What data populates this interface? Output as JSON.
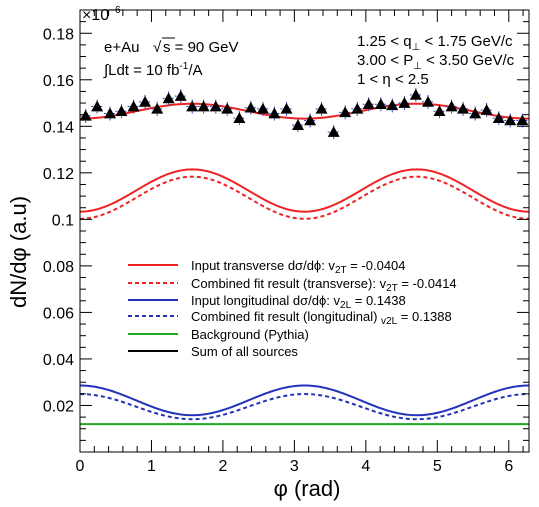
{
  "chart_data": {
    "type": "scatter",
    "xlabel": "φ (rad)",
    "ylabel": "dN/dφ (a.u)",
    "xlim": [
      0,
      6.283
    ],
    "ylim": [
      0,
      1.9e-07
    ],
    "y_exponent_label": "×10",
    "y_exponent": "−6",
    "x_ticks": [
      0,
      1,
      2,
      3,
      4,
      5,
      6
    ],
    "x_tick_labels": [
      "0",
      "1",
      "2",
      "3",
      "4",
      "5",
      "6"
    ],
    "y_ticks": [
      2e-08,
      4e-08,
      6e-08,
      8e-08,
      1e-07,
      1.2e-07,
      1.4e-07,
      1.6e-07,
      1.8e-07
    ],
    "y_tick_labels": [
      "0.02",
      "0.04",
      "0.06",
      "0.08",
      "0.1",
      "0.12",
      "0.14",
      "0.16",
      "0.18"
    ],
    "annotations": {
      "collision_pre": "e+Au ",
      "collision_post": "s = 90 GeV",
      "lumi_pre": "∫Ldt = 10 fb",
      "lumi_sup": "-1",
      "lumi_post": "/A",
      "qperp_pre": "1.25 < q",
      "qperp_sub": "⊥",
      "qperp_post": " < 1.75 GeV/c",
      "pperp_pre": "3.00 < P",
      "pperp_sub": "⊥",
      "pperp_post": " < 3.50 GeV/c",
      "eta": "1 < η < 2.5"
    },
    "legend": [
      {
        "pre": "Input transverse dσ/dϕ: v",
        "sub": "2T",
        "post": " = -0.0404",
        "color": "#ee2222",
        "dash": false
      },
      {
        "pre": "Combined fit result (transverse): v",
        "sub": "2T",
        "post": " = -0.0414",
        "color": "#ee2222",
        "dash": true
      },
      {
        "pre": "Input longitudinal dσ/dϕ: v",
        "sub": "2L",
        "post": " = 0.1438",
        "color": "#2233bb",
        "dash": false
      },
      {
        "pre": "Combined fit result (longitudinal) ",
        "sub": "v2L",
        "post": " = 0.1388",
        "color": "#2233bb",
        "dash": true
      },
      {
        "pre": "Background (Pythia)",
        "sub": "",
        "post": "",
        "color": "#22aa22",
        "dash": false
      },
      {
        "pre": "Sum of all sources",
        "sub": "",
        "post": "",
        "color": "#000000",
        "dash": false
      }
    ],
    "curves": [
      {
        "role": "input-transverse",
        "color": "#ee2222",
        "dash": false,
        "mean": 1.124e-07,
        "v2": -0.0404
      },
      {
        "role": "fit-transverse",
        "color": "#ee2222",
        "dash": true,
        "mean": 1.093e-07,
        "v2": -0.0414
      },
      {
        "role": "input-longitudinal",
        "color": "#2233bb",
        "dash": false,
        "mean": 2.22e-08,
        "v2": 0.1438
      },
      {
        "role": "fit-longitudinal",
        "color": "#2233bb",
        "dash": true,
        "mean": 1.95e-08,
        "v2": 0.1388
      },
      {
        "role": "background",
        "color": "#22aa22",
        "dash": false,
        "constant": 1.2e-08
      },
      {
        "role": "sum-fit",
        "color": "#ee2222",
        "dash": false,
        "mean": 1.465e-07,
        "amplitude": 3.2e-09
      }
    ],
    "points": {
      "color": "#000000",
      "error_color": "#3344cc",
      "x": [
        0.08,
        0.24,
        0.42,
        0.58,
        0.75,
        0.91,
        1.08,
        1.24,
        1.41,
        1.57,
        1.73,
        1.9,
        2.06,
        2.23,
        2.39,
        2.56,
        2.72,
        2.89,
        3.05,
        3.22,
        3.38,
        3.55,
        3.71,
        3.88,
        4.04,
        4.21,
        4.37,
        4.54,
        4.7,
        4.87,
        5.03,
        5.2,
        5.36,
        5.53,
        5.69,
        5.86,
        6.02,
        6.19
      ],
      "y": [
        1.445e-07,
        1.485e-07,
        1.455e-07,
        1.465e-07,
        1.485e-07,
        1.505e-07,
        1.475e-07,
        1.52e-07,
        1.53e-07,
        1.485e-07,
        1.485e-07,
        1.485e-07,
        1.475e-07,
        1.435e-07,
        1.48e-07,
        1.475e-07,
        1.455e-07,
        1.475e-07,
        1.405e-07,
        1.425e-07,
        1.475e-07,
        1.375e-07,
        1.46e-07,
        1.475e-07,
        1.495e-07,
        1.495e-07,
        1.49e-07,
        1.5e-07,
        1.535e-07,
        1.505e-07,
        1.465e-07,
        1.485e-07,
        1.475e-07,
        1.455e-07,
        1.47e-07,
        1.435e-07,
        1.425e-07,
        1.425e-07
      ],
      "err": [
        3e-09,
        3e-09,
        3e-09,
        3e-09,
        3e-09,
        3e-09,
        3e-09,
        3e-09,
        3e-09,
        3e-09,
        3e-09,
        3e-09,
        3e-09,
        3e-09,
        3e-09,
        3e-09,
        3e-09,
        3e-09,
        3e-09,
        3e-09,
        3e-09,
        3e-09,
        3e-09,
        3e-09,
        3e-09,
        3e-09,
        3e-09,
        3e-09,
        3e-09,
        3e-09,
        3e-09,
        3e-09,
        3e-09,
        3e-09,
        3e-09,
        3e-09,
        3e-09,
        3e-09
      ]
    }
  }
}
